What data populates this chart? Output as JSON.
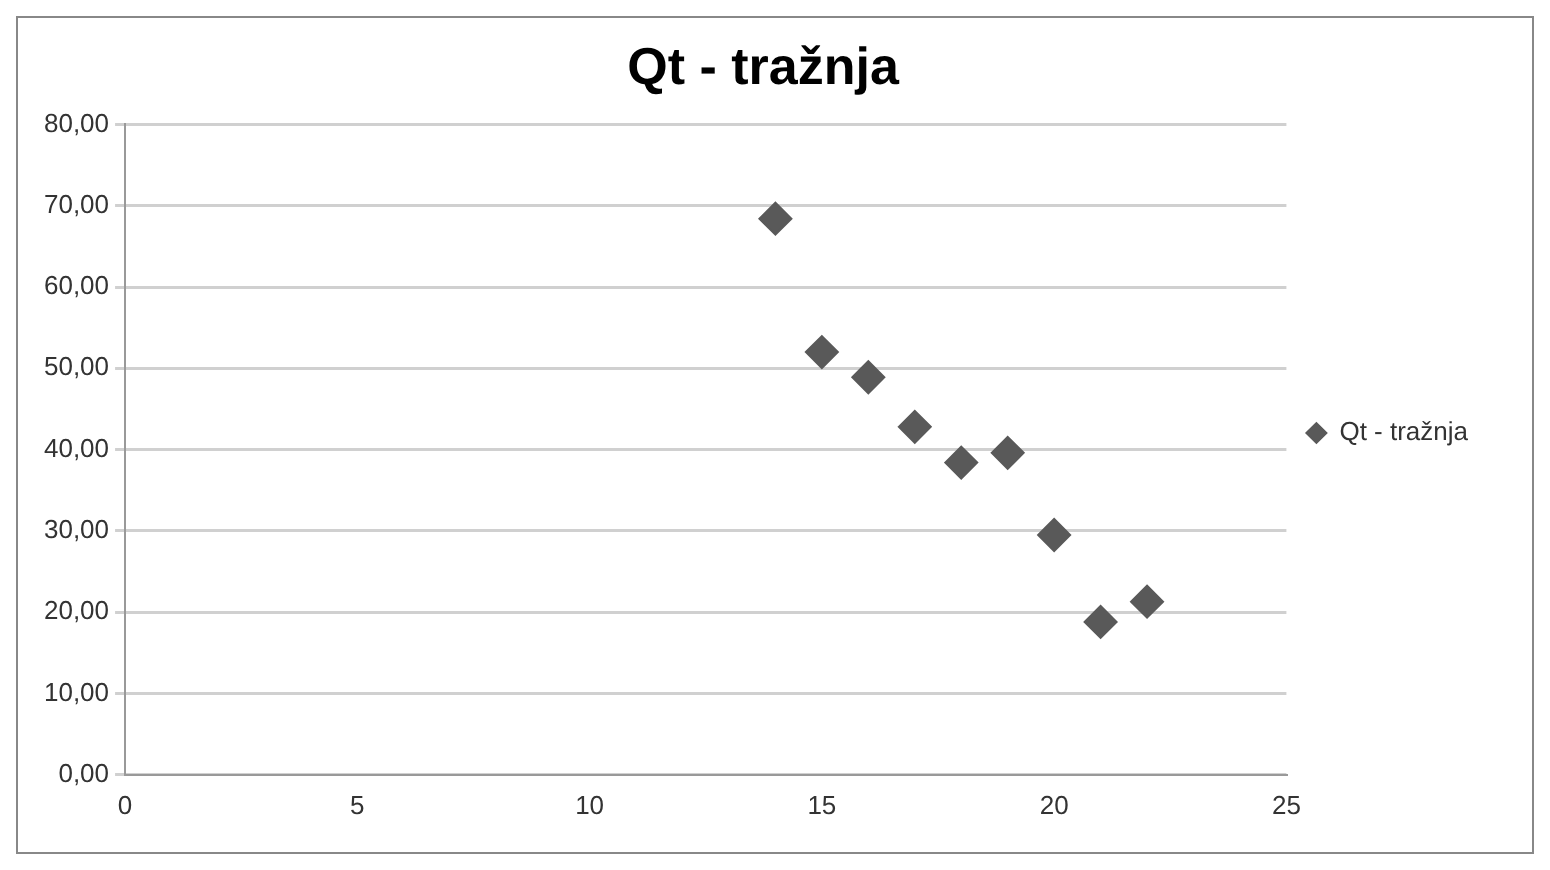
{
  "chart_data": {
    "type": "scatter",
    "title": "Qt - tražnja",
    "x": [
      14,
      15,
      16,
      17,
      18,
      19,
      20,
      21,
      22
    ],
    "series": [
      {
        "name": "Qt - tražnja",
        "color": "#595959",
        "values": [
          68.4,
          52.0,
          48.9,
          42.8,
          38.4,
          39.6,
          29.5,
          18.8,
          21.3
        ]
      }
    ],
    "xlim": [
      0,
      25
    ],
    "xticks": [
      0,
      5,
      10,
      15,
      20,
      25
    ],
    "ylim": [
      0,
      80
    ],
    "yticks": [
      {
        "value": 0,
        "label": "0,00"
      },
      {
        "value": 10,
        "label": "10,00"
      },
      {
        "value": 20,
        "label": "20,00"
      },
      {
        "value": 30,
        "label": "30,00"
      },
      {
        "value": 40,
        "label": "40,00"
      },
      {
        "value": 50,
        "label": "50,00"
      },
      {
        "value": 60,
        "label": "60,00"
      },
      {
        "value": 70,
        "label": "70,00"
      },
      {
        "value": 80,
        "label": "80,00"
      }
    ],
    "grid": "y",
    "legend": "right",
    "marker": "diamond"
  }
}
